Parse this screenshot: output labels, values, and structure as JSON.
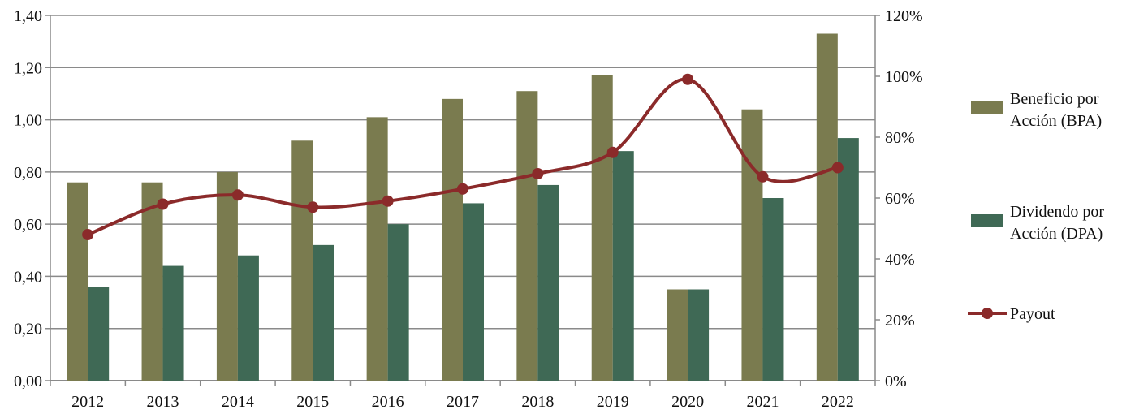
{
  "chart_data": {
    "type": "bar",
    "title": "",
    "categories": [
      "2012",
      "2013",
      "2014",
      "2015",
      "2016",
      "2017",
      "2018",
      "2019",
      "2020",
      "2021",
      "2022"
    ],
    "series": [
      {
        "name": "Beneficio por Acción (BPA)",
        "axis": "left",
        "type": "bar",
        "color": "#7a7b4f",
        "values": [
          0.76,
          0.76,
          0.8,
          0.92,
          1.01,
          1.08,
          1.11,
          1.17,
          0.35,
          1.04,
          1.33
        ]
      },
      {
        "name": "Dividendo por Acción (DPA)",
        "axis": "left",
        "type": "bar",
        "color": "#3f6955",
        "values": [
          0.36,
          0.44,
          0.48,
          0.52,
          0.6,
          0.68,
          0.75,
          0.88,
          0.35,
          0.7,
          0.93
        ]
      },
      {
        "name": "Payout",
        "axis": "right",
        "type": "line",
        "color": "#8b2a2a",
        "values": [
          48,
          58,
          61,
          57,
          59,
          63,
          68,
          75,
          99,
          67,
          70
        ]
      }
    ],
    "legend_lines": [
      [
        "Beneficio por",
        "Acción (BPA)"
      ],
      [
        "Dividendo por",
        "Acción (DPA)"
      ],
      [
        "Payout"
      ]
    ],
    "y_left": {
      "ylim": [
        0,
        1.4
      ],
      "ticks": [
        "0,00",
        "0,20",
        "0,40",
        "0,60",
        "0,80",
        "1,00",
        "1,20",
        "1,40"
      ]
    },
    "y_right": {
      "ylim": [
        0,
        120
      ],
      "ticks": [
        "0%",
        "20%",
        "40%",
        "60%",
        "80%",
        "100%",
        "120%"
      ]
    },
    "xlabel": "",
    "ylabel": "",
    "grid": true,
    "legend_position": "right"
  }
}
